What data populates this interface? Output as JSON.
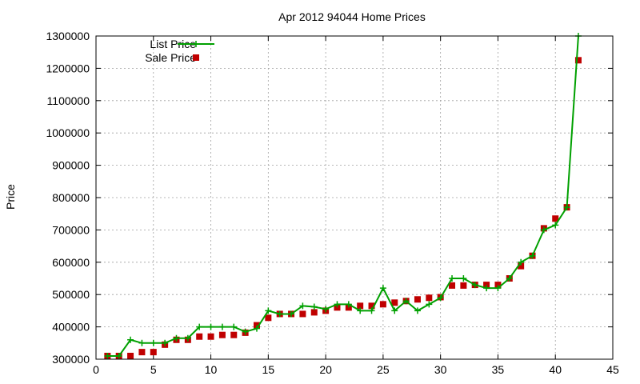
{
  "chart_data": {
    "type": "line",
    "title": "Apr 2012 94044 Home Prices",
    "xlabel": "",
    "ylabel": "Price",
    "xlim": [
      0,
      45
    ],
    "ylim": [
      300000,
      1300000
    ],
    "x_ticks": [
      0,
      5,
      10,
      15,
      20,
      25,
      30,
      35,
      40,
      45
    ],
    "y_ticks": [
      300000,
      400000,
      500000,
      600000,
      700000,
      800000,
      900000,
      1000000,
      1100000,
      1200000,
      1300000
    ],
    "grid": true,
    "legend_position": "top-left",
    "series": [
      {
        "name": "List Price",
        "style": "line-plus",
        "color": "#00a000",
        "points": [
          [
            1,
            310000
          ],
          [
            2,
            310000
          ],
          [
            3,
            360000
          ],
          [
            4,
            350000
          ],
          [
            5,
            350000
          ],
          [
            6,
            350000
          ],
          [
            7,
            365000
          ],
          [
            8,
            365000
          ],
          [
            9,
            400000
          ],
          [
            10,
            400000
          ],
          [
            11,
            400000
          ],
          [
            12,
            400000
          ],
          [
            13,
            385000
          ],
          [
            14,
            395000
          ],
          [
            15,
            450000
          ],
          [
            16,
            440000
          ],
          [
            17,
            440000
          ],
          [
            18,
            465000
          ],
          [
            19,
            462000
          ],
          [
            20,
            455000
          ],
          [
            21,
            470000
          ],
          [
            22,
            470000
          ],
          [
            23,
            450000
          ],
          [
            24,
            450000
          ],
          [
            25,
            520000
          ],
          [
            26,
            450000
          ],
          [
            27,
            480000
          ],
          [
            28,
            450000
          ],
          [
            29,
            470000
          ],
          [
            30,
            490000
          ],
          [
            31,
            550000
          ],
          [
            32,
            550000
          ],
          [
            33,
            530000
          ],
          [
            34,
            520000
          ],
          [
            35,
            520000
          ],
          [
            36,
            550000
          ],
          [
            37,
            600000
          ],
          [
            38,
            620000
          ],
          [
            39,
            700000
          ],
          [
            40,
            715000
          ],
          [
            41,
            770000
          ],
          [
            42,
            1300000
          ]
        ]
      },
      {
        "name": "Sale Price",
        "style": "square",
        "color": "#c00000",
        "points": [
          [
            1,
            310000
          ],
          [
            2,
            310000
          ],
          [
            3,
            310000
          ],
          [
            4,
            322000
          ],
          [
            5,
            322000
          ],
          [
            6,
            345000
          ],
          [
            7,
            360000
          ],
          [
            8,
            360000
          ],
          [
            9,
            370000
          ],
          [
            10,
            370000
          ],
          [
            11,
            375000
          ],
          [
            12,
            375000
          ],
          [
            13,
            382000
          ],
          [
            14,
            405000
          ],
          [
            15,
            428000
          ],
          [
            16,
            440000
          ],
          [
            17,
            440000
          ],
          [
            18,
            440000
          ],
          [
            19,
            445000
          ],
          [
            20,
            450000
          ],
          [
            21,
            460000
          ],
          [
            22,
            460000
          ],
          [
            23,
            465000
          ],
          [
            24,
            465000
          ],
          [
            25,
            470000
          ],
          [
            26,
            475000
          ],
          [
            27,
            480000
          ],
          [
            28,
            485000
          ],
          [
            29,
            490000
          ],
          [
            30,
            492000
          ],
          [
            31,
            528000
          ],
          [
            32,
            528000
          ],
          [
            33,
            530000
          ],
          [
            34,
            530000
          ],
          [
            35,
            530000
          ],
          [
            36,
            550000
          ],
          [
            37,
            588000
          ],
          [
            38,
            620000
          ],
          [
            39,
            705000
          ],
          [
            40,
            735000
          ],
          [
            41,
            770000
          ],
          [
            42,
            1225000
          ]
        ]
      }
    ]
  }
}
